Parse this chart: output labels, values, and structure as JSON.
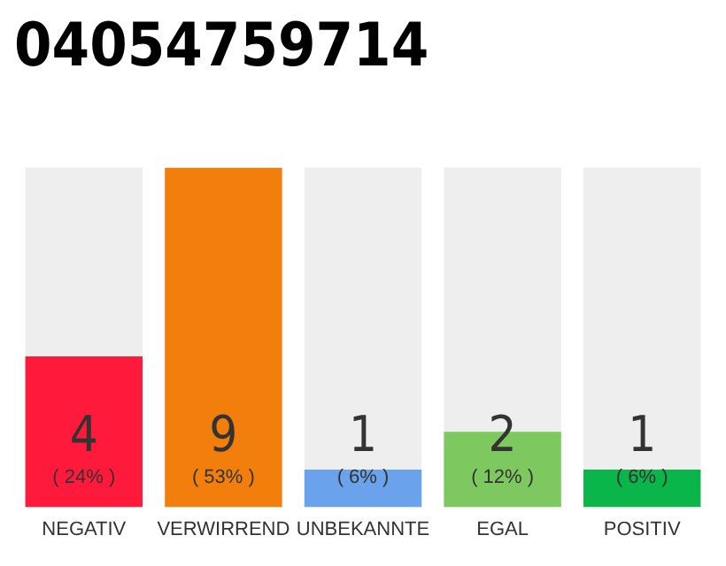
{
  "chart_data": {
    "type": "bar",
    "title": "04054759714",
    "categories": [
      "NEGATIV",
      "VERWIRREND",
      "UNBEKANNTE",
      "EGAL",
      "POSITIV"
    ],
    "values": [
      4,
      9,
      1,
      2,
      1
    ],
    "colors": [
      "#ff1a3c",
      "#f27f0c",
      "#6aa2ec",
      "#7ec95f",
      "#0ab54a"
    ],
    "value_labels": [
      "4\n( 24% )",
      "9\n( 53% )",
      "1\n( 6% )",
      "2\n( 12% )",
      "1\n( 6% )"
    ],
    "tick_labels": "x",
    "grid": false,
    "legend": false
  }
}
